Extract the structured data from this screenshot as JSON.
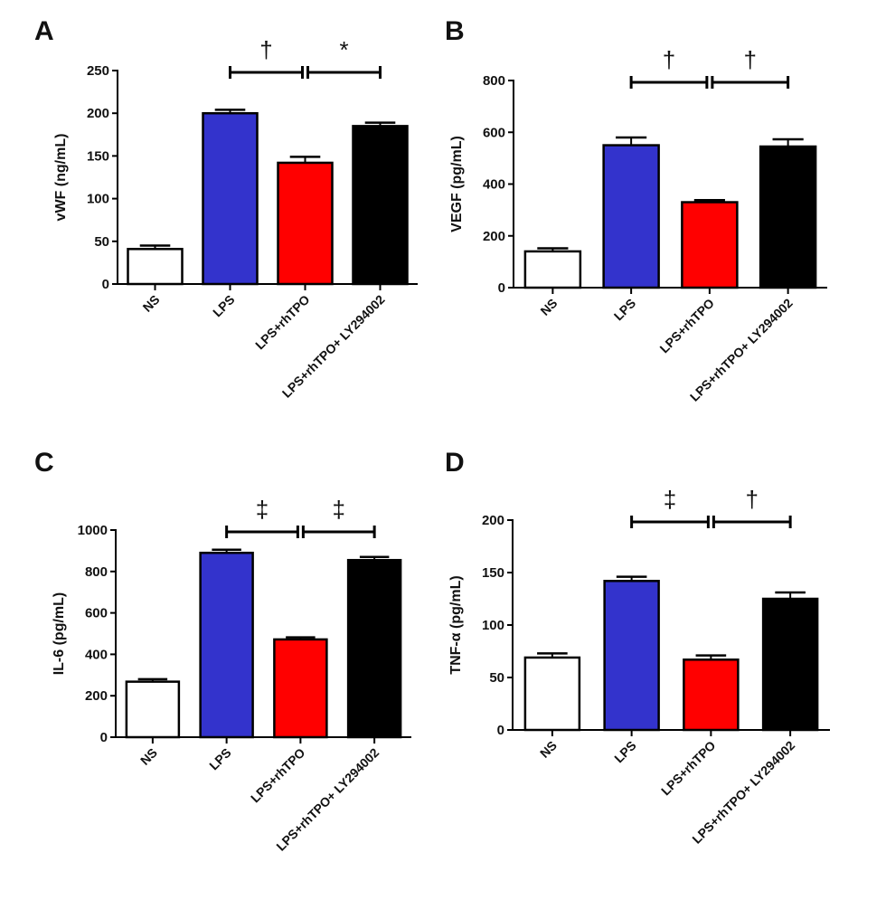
{
  "figure": {
    "categories": [
      "NS",
      "LPS",
      "LPS+rhTPO",
      "LPS+rhTPO+ LY294002"
    ],
    "bar_colors": [
      "#ffffff",
      "#3333cc",
      "#ff0000",
      "#000000"
    ],
    "axis_color": "#000000"
  },
  "chart_data": [
    {
      "panel": "A",
      "type": "bar",
      "title": "",
      "ylabel": "vWF (ng/mL)",
      "xlabel": "",
      "categories": [
        "NS",
        "LPS",
        "LPS+rhTPO",
        "LPS+rhTPO+ LY294002"
      ],
      "values": [
        41,
        200,
        142,
        185
      ],
      "errors": [
        4,
        4,
        7,
        4
      ],
      "ylim": [
        0,
        250
      ],
      "yticks": [
        0,
        50,
        100,
        150,
        200,
        250
      ],
      "significance": [
        {
          "from": 1,
          "to": 2,
          "symbol": "†"
        },
        {
          "from": 2,
          "to": 3,
          "symbol": "*"
        }
      ]
    },
    {
      "panel": "B",
      "type": "bar",
      "title": "",
      "ylabel": "VEGF (pg/mL)",
      "xlabel": "",
      "categories": [
        "NS",
        "LPS",
        "LPS+rhTPO",
        "LPS+rhTPO+ LY294002"
      ],
      "values": [
        140,
        550,
        330,
        545
      ],
      "errors": [
        12,
        30,
        8,
        28
      ],
      "ylim": [
        0,
        800
      ],
      "yticks": [
        0,
        200,
        400,
        600,
        800
      ],
      "significance": [
        {
          "from": 1,
          "to": 2,
          "symbol": "†"
        },
        {
          "from": 2,
          "to": 3,
          "symbol": "†"
        }
      ]
    },
    {
      "panel": "C",
      "type": "bar",
      "title": "",
      "ylabel": "IL-6 (pg/mL)",
      "xlabel": "",
      "categories": [
        "NS",
        "LPS",
        "LPS+rhTPO",
        "LPS+rhTPO+ LY294002"
      ],
      "values": [
        268,
        890,
        472,
        855
      ],
      "errors": [
        12,
        15,
        10,
        15
      ],
      "ylim": [
        0,
        1000
      ],
      "yticks": [
        0,
        200,
        400,
        600,
        800,
        1000
      ],
      "significance": [
        {
          "from": 1,
          "to": 2,
          "symbol": "‡"
        },
        {
          "from": 2,
          "to": 3,
          "symbol": "‡"
        }
      ]
    },
    {
      "panel": "D",
      "type": "bar",
      "title": "",
      "ylabel": "TNF-α (pg/mL)",
      "xlabel": "",
      "categories": [
        "NS",
        "LPS",
        "LPS+rhTPO",
        "LPS+rhTPO+ LY294002"
      ],
      "values": [
        69,
        142,
        67,
        125
      ],
      "errors": [
        4,
        4,
        4,
        6
      ],
      "ylim": [
        0,
        200
      ],
      "yticks": [
        0,
        50,
        100,
        150,
        200
      ],
      "significance": [
        {
          "from": 1,
          "to": 2,
          "symbol": "‡"
        },
        {
          "from": 2,
          "to": 3,
          "symbol": "†"
        }
      ]
    }
  ]
}
